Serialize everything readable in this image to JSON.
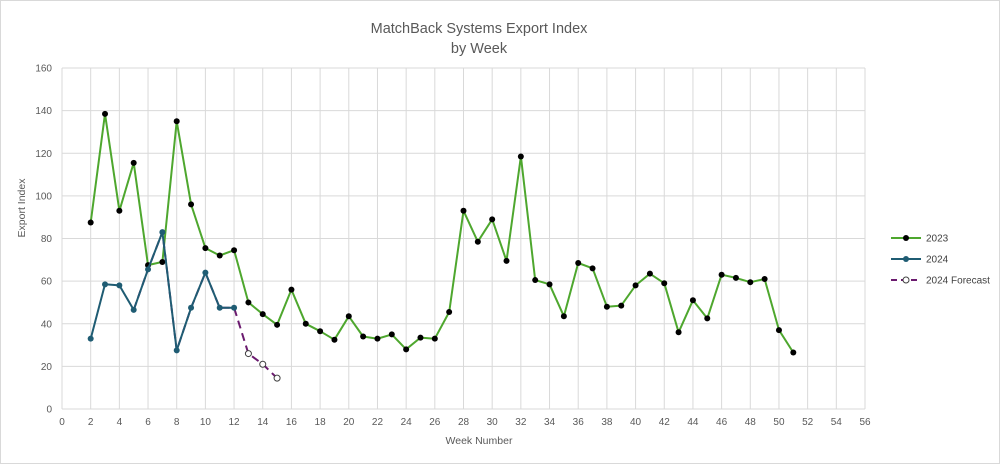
{
  "chart_data": {
    "type": "line",
    "title": [
      "MatchBack Systems Export Index",
      "by Week"
    ],
    "xlabel": "Week Number",
    "ylabel": "Export  Index",
    "xlim": [
      0,
      56
    ],
    "ylim": [
      0,
      160
    ],
    "xticks": [
      0,
      2,
      4,
      6,
      8,
      10,
      12,
      14,
      16,
      18,
      20,
      22,
      24,
      26,
      28,
      30,
      32,
      34,
      36,
      38,
      40,
      42,
      44,
      46,
      48,
      50,
      52,
      54,
      56
    ],
    "yticks": [
      0,
      20,
      40,
      60,
      80,
      100,
      120,
      140,
      160
    ],
    "grid": true,
    "legend_position": "right",
    "series": [
      {
        "name": "2023",
        "color": "#4ea72e",
        "marker_color": "#000000",
        "marker": "filled-circle",
        "line_style": "solid",
        "x": [
          2,
          3,
          4,
          5,
          6,
          7,
          8,
          9,
          10,
          11,
          12,
          13,
          14,
          15,
          16,
          17,
          18,
          19,
          20,
          21,
          22,
          23,
          24,
          25,
          26,
          27,
          28,
          29,
          30,
          31,
          32,
          33,
          34,
          35,
          36,
          37,
          38,
          39,
          40,
          41,
          42,
          43,
          44,
          45,
          46,
          47,
          48,
          49,
          50,
          51
        ],
        "values": [
          87.5,
          138.5,
          93,
          115.5,
          67.5,
          69,
          135,
          96,
          75.5,
          72,
          74.5,
          50,
          44.5,
          39.5,
          56,
          40,
          36.5,
          32.5,
          43.5,
          34,
          33,
          35,
          28,
          33.5,
          33,
          45.5,
          93,
          78.5,
          89,
          69.5,
          118.5,
          60.5,
          58.5,
          43.5,
          68.5,
          66,
          48,
          48.5,
          58,
          63.5,
          59,
          36,
          51,
          42.5,
          63,
          61.5,
          59.5,
          61,
          37,
          26.5
        ]
      },
      {
        "name": "2024",
        "color": "#1f5c73",
        "marker_color": "#1f5c73",
        "marker": "filled-circle",
        "line_style": "solid",
        "x": [
          2,
          3,
          4,
          5,
          6,
          7,
          8,
          9,
          10,
          11,
          12
        ],
        "values": [
          33,
          58.5,
          58,
          46.5,
          65.5,
          83,
          27.5,
          47.5,
          64,
          47.5,
          47.5
        ]
      },
      {
        "name": "2024 Forecast",
        "color": "#6b1b6f",
        "marker_color": "#ffffff",
        "marker": "open-circle",
        "line_style": "dashed",
        "x": [
          5,
          6,
          7,
          8,
          9,
          10,
          11,
          12,
          13,
          14,
          15
        ],
        "values": [
          46.5,
          65.5,
          83,
          27.5,
          47.5,
          64,
          47.5,
          47.5,
          26,
          21,
          14.5
        ],
        "marker_from_x": 13
      }
    ]
  }
}
